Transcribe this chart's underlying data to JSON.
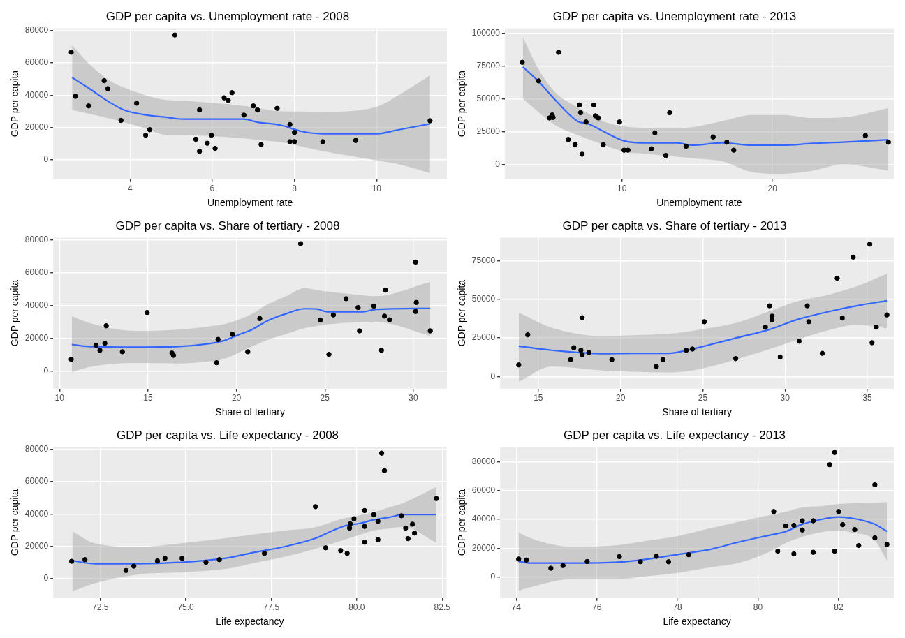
{
  "chart_data": [
    {
      "type": "scatter",
      "title": "GDP per capita vs. Unemployment rate - 2008",
      "xlabel": "Unemployment rate",
      "ylabel": "GDP per capita",
      "xlim": [
        2.13,
        11.71
      ],
      "ylim": [
        -12000,
        81500
      ],
      "xticks": [
        4,
        6,
        8,
        10
      ],
      "yticks": [
        0,
        20000,
        40000,
        60000,
        80000
      ],
      "grid": true,
      "series": [
        {
          "type": "scatter",
          "color": "#000000",
          "marker": "circle",
          "x": [
            2.57,
            2.67,
            2.99,
            3.37,
            3.46,
            3.78,
            4.16,
            4.38,
            4.48,
            5.09,
            5.6,
            5.69,
            5.69,
            5.88,
            5.98,
            6.07,
            6.29,
            6.39,
            6.48,
            6.77,
            7.0,
            7.1,
            7.19,
            7.58,
            7.89,
            7.89,
            8.0,
            8.0,
            8.69,
            9.49,
            11.3
          ],
          "values": [
            66600,
            39300,
            33400,
            49000,
            44100,
            24400,
            35100,
            15300,
            18700,
            77300,
            12800,
            5300,
            30900,
            10300,
            15300,
            7100,
            38400,
            36800,
            41600,
            27700,
            33400,
            30900,
            9500,
            31900,
            21900,
            11300,
            11300,
            17000,
            11300,
            12000,
            24200
          ]
        },
        {
          "type": "line",
          "color": "#3366ff",
          "marker": "none",
          "x": [
            2.59,
            3.0,
            3.5,
            3.85,
            4.42,
            4.84,
            5.27,
            6.76,
            7.11,
            7.68,
            8.18,
            8.67,
            10.02,
            10.5,
            11.3
          ],
          "values": [
            51000,
            44300,
            35700,
            30900,
            27700,
            26500,
            25200,
            25200,
            23300,
            21400,
            17600,
            16200,
            16200,
            18500,
            22300
          ],
          "lower": [
            30900,
            28500,
            25600,
            23300,
            19000,
            15600,
            15300,
            13300,
            12300,
            10900,
            8200,
            5500,
            -400,
            -2500,
            -8200
          ],
          "upper": [
            71000,
            59500,
            49100,
            44800,
            39700,
            37200,
            36600,
            33400,
            32100,
            30000,
            29900,
            29700,
            33000,
            39500,
            52300
          ]
        }
      ]
    },
    {
      "type": "scatter",
      "title": "GDP per capita vs. Unemployment rate - 2013",
      "xlabel": "Unemployment rate",
      "ylabel": "GDP per capita",
      "xlim": [
        2.21,
        28.07
      ],
      "ylim": [
        -11300,
        104000
      ],
      "xticks": [
        10,
        20
      ],
      "yticks": [
        0,
        25000,
        50000,
        75000,
        100000
      ],
      "grid": true,
      "series": [
        {
          "type": "scatter",
          "color": "#000000",
          "marker": "circle",
          "x": [
            3.37,
            4.46,
            5.78,
            5.18,
            5.36,
            5.42,
            6.43,
            6.89,
            7.17,
            7.25,
            7.35,
            7.61,
            8.13,
            8.23,
            8.43,
            8.76,
            9.84,
            10.14,
            10.4,
            11.95,
            12.19,
            12.91,
            13.17,
            14.26,
            16.06,
            16.97,
            17.43,
            26.18,
            27.71
          ],
          "values": [
            78000,
            63800,
            85600,
            35500,
            37800,
            35900,
            19100,
            15100,
            45400,
            39500,
            7800,
            32400,
            45400,
            37100,
            35500,
            15100,
            32400,
            10900,
            10900,
            11900,
            24100,
            6900,
            39500,
            13900,
            21000,
            17000,
            10900,
            22000,
            17000
          ]
        },
        {
          "type": "line",
          "color": "#3366ff",
          "marker": "none",
          "x": [
            3.41,
            4.42,
            5.62,
            7.03,
            7.83,
            8.84,
            10.24,
            11.65,
            13.65,
            14.66,
            16.67,
            18.67,
            20.68,
            22.69,
            24.7,
            27.71
          ],
          "values": [
            74500,
            63800,
            48500,
            33100,
            30700,
            24800,
            17700,
            16500,
            16500,
            14700,
            16500,
            14700,
            14700,
            16100,
            17000,
            18900
          ],
          "lower": [
            50100,
            40200,
            29600,
            22500,
            19000,
            14700,
            9500,
            8100,
            5900,
            4700,
            2400,
            -5900,
            -7100,
            -4700,
            0,
            -4700
          ],
          "upper": [
            97400,
            73300,
            54400,
            43700,
            38400,
            32500,
            28800,
            27900,
            27800,
            28400,
            33100,
            37800,
            37800,
            35500,
            35900,
            43000
          ]
        }
      ]
    },
    {
      "type": "scatter",
      "title": "GDP per capita vs. Share of tertiary - 2008",
      "xlabel": "Share of tertiary",
      "ylabel": "GDP per capita",
      "xlim": [
        9.64,
        31.9
      ],
      "ylim": [
        -10600,
        81400
      ],
      "xticks": [
        10,
        15,
        20,
        25,
        30
      ],
      "yticks": [
        0,
        20000,
        40000,
        60000,
        80000
      ],
      "grid": true,
      "series": [
        {
          "type": "scatter",
          "color": "#000000",
          "marker": "circle",
          "x": [
            10.66,
            12.06,
            12.28,
            12.56,
            12.64,
            13.55,
            14.95,
            16.35,
            16.44,
            18.88,
            18.96,
            19.77,
            20.64,
            21.32,
            23.63,
            24.74,
            25.23,
            25.48,
            26.2,
            26.88,
            26.96,
            27.77,
            28.2,
            28.37,
            28.43,
            28.65,
            30.13,
            30.17,
            30.13,
            30.96
          ],
          "values": [
            7300,
            15900,
            12800,
            17100,
            27700,
            11900,
            35800,
            11100,
            9700,
            5200,
            19400,
            22500,
            11900,
            32100,
            77700,
            31200,
            10300,
            34300,
            44200,
            38800,
            24600,
            39700,
            12800,
            33600,
            49400,
            31300,
            66500,
            41900,
            36400,
            24600
          ]
        },
        {
          "type": "line",
          "color": "#3366ff",
          "marker": "none",
          "x": [
            10.69,
            11.65,
            14.29,
            16.77,
            18.42,
            19.24,
            20.07,
            20.89,
            21.72,
            22.87,
            23.86,
            24.52,
            25.18,
            27.16,
            27.82,
            30.96
          ],
          "values": [
            16300,
            15100,
            14700,
            15100,
            16800,
            18500,
            22000,
            25500,
            30600,
            35300,
            38100,
            37900,
            36200,
            36200,
            37600,
            38300
          ],
          "lower": [
            -500,
            2500,
            5000,
            4700,
            6000,
            7300,
            11000,
            15100,
            19000,
            22900,
            26300,
            27500,
            28600,
            30000,
            30100,
            21500
          ],
          "upper": [
            33600,
            29500,
            24600,
            25400,
            27300,
            28500,
            31200,
            35000,
            40500,
            46000,
            50600,
            49500,
            48500,
            46300,
            45700,
            54400
          ]
        }
      ]
    },
    {
      "type": "scatter",
      "title": "GDP per capita vs. Share of tertiary - 2013",
      "xlabel": "Share of tertiary",
      "ylabel": "GDP per capita",
      "xlim": [
        12.68,
        36.61
      ],
      "ylim": [
        -7900,
        90000
      ],
      "xticks": [
        15,
        20,
        25,
        30,
        35
      ],
      "yticks": [
        0,
        25000,
        50000,
        75000
      ],
      "grid": true,
      "series": [
        {
          "type": "scatter",
          "color": "#000000",
          "marker": "circle",
          "x": [
            13.81,
            14.36,
            16.97,
            17.16,
            17.59,
            17.67,
            17.67,
            18.07,
            19.47,
            22.18,
            22.58,
            23.99,
            24.37,
            25.09,
            27.0,
            28.81,
            29.06,
            29.21,
            29.21,
            29.7,
            30.85,
            31.35,
            31.44,
            32.26,
            33.17,
            33.48,
            34.14,
            35.15,
            35.29,
            35.55,
            36.19
          ],
          "values": [
            7500,
            27000,
            10900,
            18600,
            17000,
            38100,
            14200,
            15400,
            10900,
            6500,
            10900,
            17000,
            17800,
            35500,
            11600,
            32000,
            45800,
            39100,
            36500,
            12600,
            22900,
            45800,
            35500,
            15000,
            63700,
            37900,
            77400,
            85800,
            21900,
            32000,
            39900
          ]
        },
        {
          "type": "line",
          "color": "#3366ff",
          "marker": "none",
          "x": [
            13.81,
            15.82,
            18.93,
            20.75,
            22.95,
            24.04,
            25.32,
            27.15,
            28.97,
            30.8,
            32.63,
            34.45,
            36.19
          ],
          "values": [
            19700,
            17000,
            14800,
            15000,
            15000,
            17000,
            20300,
            25300,
            30200,
            37100,
            42000,
            46000,
            49100
          ],
          "lower": [
            -3400,
            6500,
            3900,
            3100,
            2600,
            3400,
            6000,
            11500,
            17500,
            24000,
            30000,
            33500,
            31200
          ],
          "upper": [
            41400,
            31600,
            26200,
            26700,
            27700,
            29000,
            31200,
            35100,
            42000,
            48900,
            52900,
            58800,
            66700
          ]
        }
      ]
    },
    {
      "type": "scatter",
      "title": "GDP per capita vs. Life expectancy - 2008",
      "xlabel": "Life expectancy",
      "ylabel": "GDP per capita",
      "xlim": [
        71.12,
        82.63
      ],
      "ylim": [
        -11900,
        81300
      ],
      "xticks": [
        72.5,
        {
          "value": 75,
          "label": "75.0"
        },
        77.5,
        {
          "value": 80,
          "label": "80.0"
        },
        82.5
      ],
      "yticks": [
        0,
        20000,
        40000,
        60000,
        80000
      ],
      "grid": true,
      "series": [
        {
          "type": "scatter",
          "color": "#000000",
          "marker": "circle",
          "x": [
            71.66,
            72.05,
            73.25,
            73.48,
            74.17,
            74.39,
            74.89,
            75.59,
            75.98,
            77.3,
            78.79,
            79.09,
            79.53,
            79.72,
            79.79,
            79.81,
            79.92,
            80.23,
            80.23,
            80.23,
            80.5,
            80.62,
            80.62,
            80.73,
            80.81,
            81.31,
            81.43,
            81.5,
            81.63,
            81.69,
            82.33
          ],
          "values": [
            10800,
            11800,
            5100,
            7800,
            11000,
            12700,
            12700,
            10200,
            11800,
            15700,
            44500,
            19100,
            17400,
            15700,
            31300,
            33900,
            37000,
            42100,
            32300,
            22600,
            39600,
            24100,
            35500,
            77500,
            66700,
            38900,
            31300,
            24800,
            33700,
            28200,
            49500
          ]
        },
        {
          "type": "line",
          "color": "#3366ff",
          "marker": "none",
          "x": [
            71.68,
            72.35,
            73.57,
            74.87,
            76.17,
            77.04,
            77.9,
            78.77,
            79.2,
            79.64,
            80.07,
            80.5,
            80.94,
            81.37,
            82.33
          ],
          "values": [
            11200,
            9300,
            9300,
            10200,
            12700,
            16500,
            19900,
            24800,
            28800,
            32600,
            34100,
            36400,
            37900,
            39600,
            39600
          ],
          "lower": [
            -7800,
            -2700,
            2600,
            4000,
            6100,
            9900,
            13600,
            18400,
            21200,
            24100,
            27000,
            29800,
            31000,
            32000,
            22200
          ],
          "upper": [
            29200,
            21800,
            19700,
            21900,
            25000,
            27500,
            29800,
            31700,
            34500,
            37300,
            39200,
            41100,
            44000,
            46800,
            56700
          ]
        }
      ]
    },
    {
      "type": "scatter",
      "title": "GDP per capita vs. Life expectancy - 2013",
      "xlabel": "Life expectancy",
      "ylabel": "GDP per capita",
      "xlim": [
        73.6,
        83.37
      ],
      "ylim": [
        -14700,
        90200
      ],
      "xticks": [
        74,
        76,
        78,
        80,
        82
      ],
      "yticks": [
        0,
        20000,
        40000,
        60000,
        80000
      ],
      "grid": true,
      "series": [
        {
          "type": "scatter",
          "color": "#000000",
          "marker": "circle",
          "x": [
            74.06,
            74.25,
            74.86,
            75.16,
            75.76,
            76.56,
            77.08,
            77.48,
            77.78,
            78.28,
            80.39,
            80.49,
            80.69,
            80.89,
            80.89,
            81.1,
            81.1,
            81.37,
            81.37,
            81.78,
            81.9,
            81.9,
            82.0,
            82.1,
            82.4,
            82.5,
            82.9,
            82.9,
            83.2
          ],
          "values": [
            12400,
            11700,
            6000,
            7900,
            10700,
            14100,
            10500,
            14300,
            10500,
            15400,
            45400,
            17900,
            35400,
            16000,
            35800,
            39000,
            32600,
            17100,
            39000,
            77900,
            86400,
            17900,
            45400,
            36300,
            32900,
            21800,
            64000,
            27100,
            22600
          ]
        },
        {
          "type": "line",
          "color": "#3366ff",
          "marker": "none",
          "x": [
            74.06,
            74.36,
            75.4,
            76.52,
            77.27,
            78.01,
            78.76,
            79.51,
            80.25,
            80.7,
            81.07,
            81.6,
            82.0,
            82.34,
            82.87,
            83.2
          ],
          "values": [
            10700,
            9600,
            9600,
            10200,
            12400,
            15600,
            18800,
            24100,
            28800,
            31600,
            36300,
            40100,
            41600,
            40700,
            36900,
            31600
          ],
          "lower": [
            -9600,
            -7100,
            -1500,
            -1500,
            600,
            2800,
            6400,
            9700,
            17000,
            23700,
            27500,
            31200,
            32300,
            30700,
            26200,
            11300
          ],
          "upper": [
            30900,
            26900,
            20900,
            22000,
            25200,
            28400,
            33400,
            38200,
            42700,
            45300,
            48100,
            49200,
            50600,
            51100,
            51500,
            51800
          ]
        }
      ]
    }
  ]
}
